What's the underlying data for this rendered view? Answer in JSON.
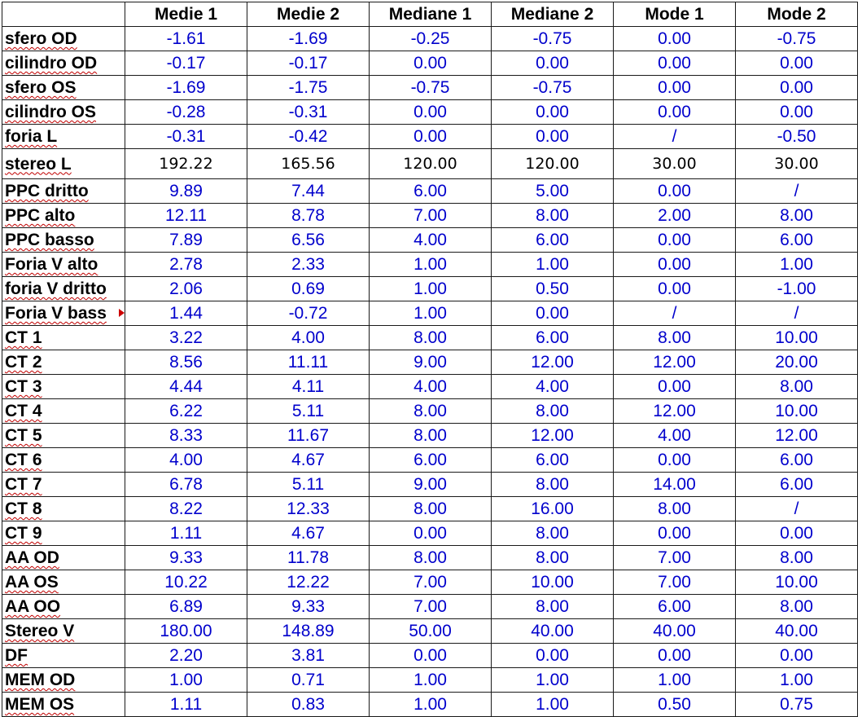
{
  "headers": [
    "",
    "Medie 1",
    "Medie 2",
    "Mediane 1",
    "Mediane 2",
    "Mode 1",
    "Mode 2"
  ],
  "rows": [
    {
      "label": "sfero OD",
      "values": [
        "-1.61",
        "-1.69",
        "-0.25",
        "-0.75",
        "0.00",
        "-0.75"
      ]
    },
    {
      "label": "cilindro OD",
      "values": [
        "-0.17",
        "-0.17",
        "0.00",
        "0.00",
        "0.00",
        "0.00"
      ]
    },
    {
      "label": "sfero OS",
      "values": [
        "-1.69",
        "-1.75",
        "-0.75",
        "-0.75",
        "0.00",
        "0.00"
      ]
    },
    {
      "label": "cilindro OS",
      "values": [
        "-0.28",
        "-0.31",
        "0.00",
        "0.00",
        "0.00",
        "0.00"
      ]
    },
    {
      "label": "foria L",
      "values": [
        "-0.31",
        "-0.42",
        "0.00",
        "0.00",
        "/",
        "-0.50"
      ]
    },
    {
      "label": "stereo L",
      "values": [
        "192.22",
        "165.56",
        "120.00",
        "120.00",
        "30.00",
        "30.00"
      ]
    },
    {
      "label": "PPC dritto",
      "values": [
        "9.89",
        "7.44",
        "6.00",
        "5.00",
        "0.00",
        "/"
      ]
    },
    {
      "label": "PPC alto",
      "values": [
        "12.11",
        "8.78",
        "7.00",
        "8.00",
        "2.00",
        "8.00"
      ]
    },
    {
      "label": "PPC basso",
      "values": [
        "7.89",
        "6.56",
        "4.00",
        "6.00",
        "0.00",
        "6.00"
      ]
    },
    {
      "label": "Foria V alto",
      "values": [
        "2.78",
        "2.33",
        "1.00",
        "1.00",
        "0.00",
        "1.00"
      ]
    },
    {
      "label": "foria V dritto",
      "values": [
        "2.06",
        "0.69",
        "1.00",
        "0.50",
        "0.00",
        "-1.00"
      ]
    },
    {
      "label": "Foria V bass",
      "values": [
        "1.44",
        "-0.72",
        "1.00",
        "0.00",
        "/",
        "/"
      ]
    },
    {
      "label": "CT 1",
      "values": [
        "3.22",
        "4.00",
        "8.00",
        "6.00",
        "8.00",
        "10.00"
      ]
    },
    {
      "label": "CT 2",
      "values": [
        "8.56",
        "11.11",
        "9.00",
        "12.00",
        "12.00",
        "20.00"
      ]
    },
    {
      "label": "CT 3",
      "values": [
        "4.44",
        "4.11",
        "4.00",
        "4.00",
        "0.00",
        "8.00"
      ]
    },
    {
      "label": "CT 4",
      "values": [
        "6.22",
        "5.11",
        "8.00",
        "8.00",
        "12.00",
        "10.00"
      ]
    },
    {
      "label": "CT 5",
      "values": [
        "8.33",
        "11.67",
        "8.00",
        "12.00",
        "4.00",
        "12.00"
      ]
    },
    {
      "label": "CT 6",
      "values": [
        "4.00",
        "4.67",
        "6.00",
        "6.00",
        "0.00",
        "6.00"
      ]
    },
    {
      "label": "CT 7",
      "values": [
        "6.78",
        "5.11",
        "9.00",
        "8.00",
        "14.00",
        "6.00"
      ]
    },
    {
      "label": "CT 8",
      "values": [
        "8.22",
        "12.33",
        "8.00",
        "16.00",
        "8.00",
        "/"
      ]
    },
    {
      "label": "CT 9",
      "values": [
        "1.11",
        "4.67",
        "0.00",
        "8.00",
        "0.00",
        "0.00"
      ]
    },
    {
      "label": "AA OD",
      "values": [
        "9.33",
        "11.78",
        "8.00",
        "8.00",
        "7.00",
        "8.00"
      ]
    },
    {
      "label": "AA OS",
      "values": [
        "10.22",
        "12.22",
        "7.00",
        "10.00",
        "7.00",
        "10.00"
      ]
    },
    {
      "label": "AA OO",
      "values": [
        "6.89",
        "9.33",
        "7.00",
        "8.00",
        "6.00",
        "8.00"
      ]
    },
    {
      "label": "Stereo V",
      "values": [
        "180.00",
        "148.89",
        "50.00",
        "40.00",
        "40.00",
        "40.00"
      ]
    },
    {
      "label": "DF",
      "values": [
        "2.20",
        "3.81",
        "0.00",
        "0.00",
        "0.00",
        "0.00"
      ]
    },
    {
      "label": "MEM OD",
      "values": [
        "1.00",
        "0.71",
        "1.00",
        "1.00",
        "1.00",
        "1.00"
      ]
    },
    {
      "label": "MEM OS",
      "values": [
        "1.11",
        "0.83",
        "1.00",
        "1.00",
        "0.50",
        "0.75"
      ]
    }
  ],
  "colors": {
    "value_text": "#0000cc",
    "label_text": "#000000",
    "grid": "#1a1a1a",
    "spellcheck": "#c00000"
  }
}
